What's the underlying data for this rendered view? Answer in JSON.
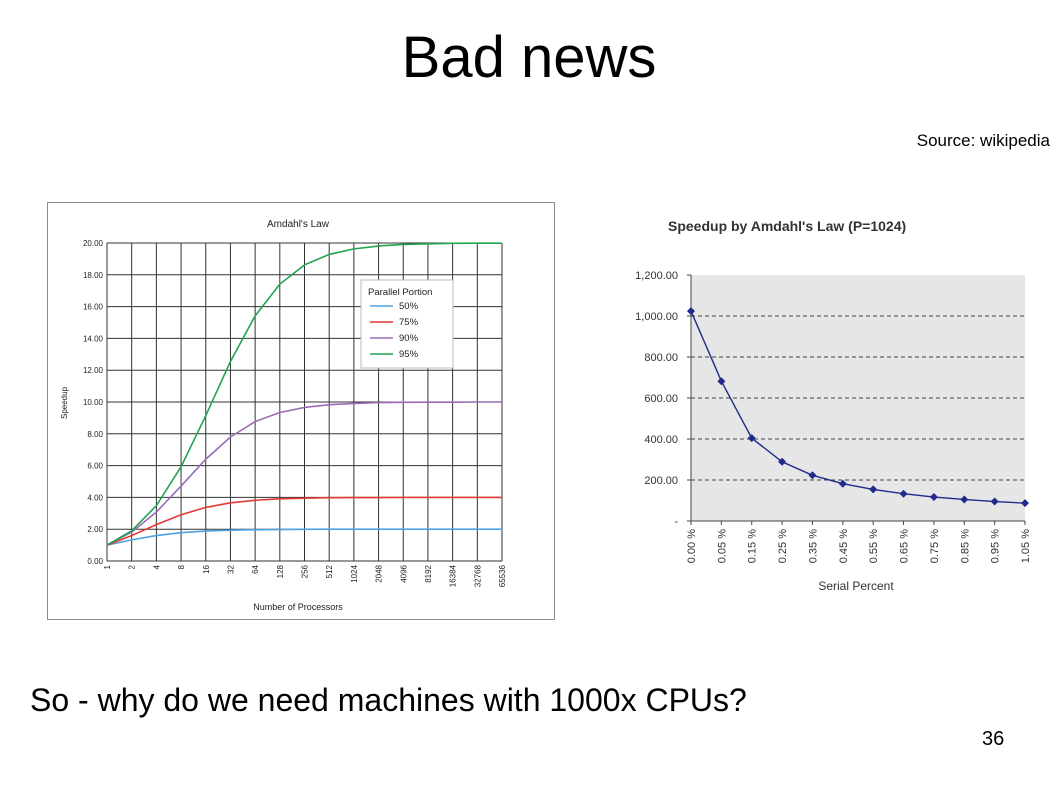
{
  "slide": {
    "title": "Bad news",
    "source": "Source: wikipedia",
    "question": "So - why do we need machines with 1000x CPUs?",
    "page_number": "36"
  },
  "chart_data": [
    {
      "type": "line",
      "title": "Amdahl's Law",
      "xlabel": "Number of Processors",
      "ylabel": "Speedup",
      "x": [
        "1",
        "2",
        "4",
        "8",
        "16",
        "32",
        "64",
        "128",
        "256",
        "512",
        "1024",
        "2048",
        "4096",
        "8192",
        "16384",
        "32768",
        "65536"
      ],
      "yticks": [
        "0.00",
        "2.00",
        "4.00",
        "6.00",
        "8.00",
        "10.00",
        "12.00",
        "14.00",
        "16.00",
        "18.00",
        "20.00"
      ],
      "ylim": [
        0,
        20
      ],
      "grid": true,
      "legend": {
        "title": "Parallel Portion",
        "position": "top-right"
      },
      "series": [
        {
          "name": "50%",
          "color": "#4ba3e3",
          "values": [
            1.0,
            1.33,
            1.6,
            1.78,
            1.88,
            1.94,
            1.97,
            1.98,
            1.99,
            2.0,
            2.0,
            2.0,
            2.0,
            2.0,
            2.0,
            2.0,
            2.0
          ]
        },
        {
          "name": "75%",
          "color": "#e23a34",
          "values": [
            1.0,
            1.6,
            2.29,
            2.91,
            3.37,
            3.66,
            3.82,
            3.91,
            3.95,
            3.98,
            3.99,
            3.99,
            4.0,
            4.0,
            4.0,
            4.0,
            4.0
          ]
        },
        {
          "name": "90%",
          "color": "#9b6bb8",
          "values": [
            1.0,
            1.82,
            3.08,
            4.71,
            6.4,
            7.8,
            8.77,
            9.34,
            9.66,
            9.83,
            9.91,
            9.96,
            9.98,
            9.99,
            9.99,
            10.0,
            10.0
          ]
        },
        {
          "name": "95%",
          "color": "#22a34f",
          "values": [
            1.0,
            1.9,
            3.48,
            5.93,
            9.14,
            12.55,
            15.42,
            17.41,
            18.62,
            19.28,
            19.63,
            19.81,
            19.91,
            19.95,
            19.98,
            19.99,
            19.99
          ]
        }
      ]
    },
    {
      "type": "line",
      "title": "Speedup by Amdahl's Law (P=1024)",
      "xlabel": "Serial Percent",
      "ylabel": "",
      "x": [
        "0.00 %",
        "0.05 %",
        "0.15 %",
        "0.25 %",
        "0.35 %",
        "0.45 %",
        "0.55 %",
        "0.65 %",
        "0.75 %",
        "0.85 %",
        "0.95 %",
        "1.05 %"
      ],
      "yticks": [
        "-",
        "200.00",
        "400.00",
        "600.00",
        "800.00",
        "1,000.00",
        "1,200.00"
      ],
      "ylim": [
        0,
        1200
      ],
      "grid": true,
      "series": [
        {
          "color": "#1f2a8a",
          "values": [
            1024,
            682,
            404,
            289,
            223,
            182,
            154,
            133,
            117,
            105,
            95,
            87
          ]
        }
      ]
    }
  ]
}
